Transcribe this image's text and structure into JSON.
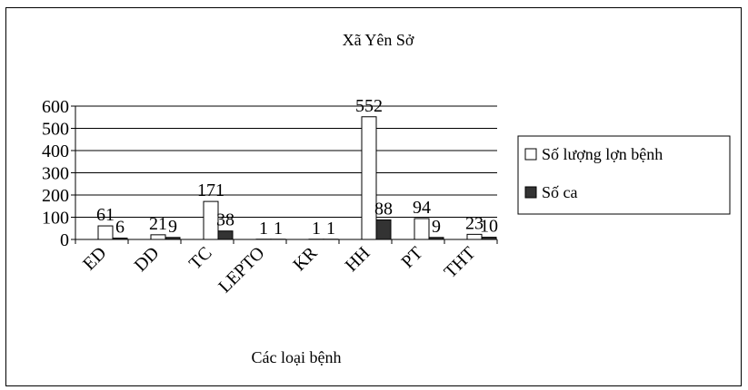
{
  "chart_data": {
    "type": "bar",
    "title": "Xã Yên Sở",
    "xlabel": "Các loại bệnh",
    "ylabel": "",
    "categories": [
      "ED",
      "DD",
      "TC",
      "LEPTO",
      "KR",
      "HH",
      "PT",
      "THT"
    ],
    "series": [
      {
        "name": "Số lượng lợn bệnh",
        "values": [
          61,
          21,
          171,
          1,
          1,
          552,
          94,
          23
        ],
        "color": "#ffffff"
      },
      {
        "name": "Số ca",
        "values": [
          6,
          9,
          38,
          1,
          1,
          88,
          9,
          10
        ],
        "color": "#333333"
      }
    ],
    "ylim": [
      0,
      600
    ],
    "yticks": [
      0,
      100,
      200,
      300,
      400,
      500,
      600
    ],
    "grid": true,
    "legend": "right"
  }
}
